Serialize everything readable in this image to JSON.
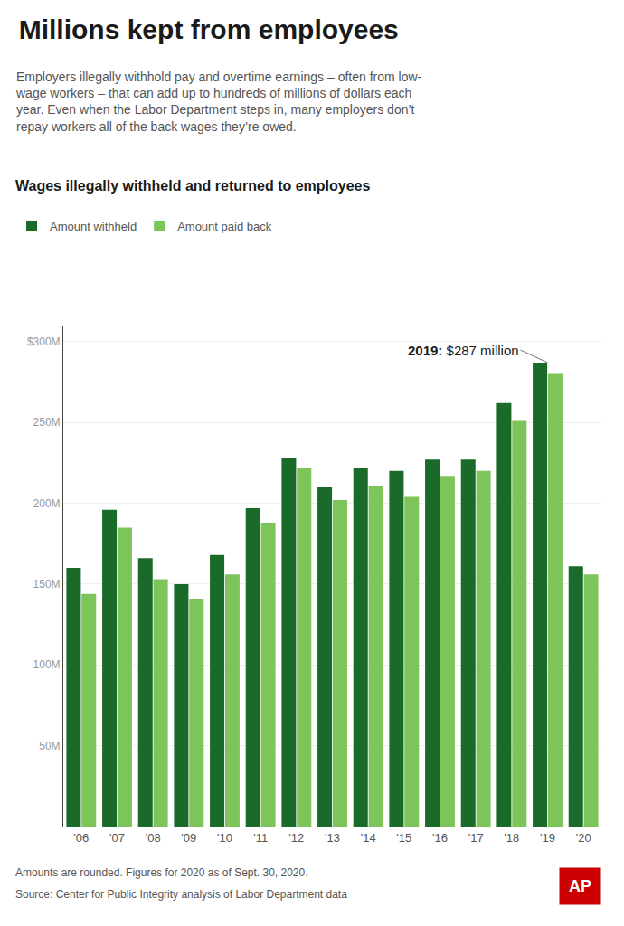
{
  "chart_data": {
    "type": "bar",
    "title": "Millions kept from employees",
    "subtitle": "Employers illegally withhold pay and overtime earnings – often from low-\nwage workers – that can add up to hundreds of millions of dollars each\nyear. Even when the Labor Department steps in, many employers don’t\nrepay workers all of the back wages they’re owed.",
    "chart_title": "Wages illegally withheld and returned to employees",
    "categories": [
      "'06",
      "'07",
      "'08",
      "'09",
      "'10",
      "'11",
      "'12",
      "'13",
      "'14",
      "'15",
      "'16",
      "'17",
      "'18",
      "'19",
      "'20"
    ],
    "series": [
      {
        "name": "Amount withheld",
        "color": "#1a6b2a",
        "values": [
          160,
          196,
          166,
          150,
          168,
          197,
          228,
          210,
          222,
          220,
          227,
          227,
          262,
          287,
          161
        ]
      },
      {
        "name": "Amount paid back",
        "color": "#7dc45a",
        "values": [
          144,
          185,
          153,
          141,
          156,
          188,
          222,
          202,
          211,
          204,
          217,
          220,
          251,
          280,
          156
        ]
      }
    ],
    "ylim": [
      0,
      310
    ],
    "yticks": [
      {
        "value": 50,
        "label": "50M"
      },
      {
        "value": 100,
        "label": "100M"
      },
      {
        "value": 150,
        "label": "150M"
      },
      {
        "value": 200,
        "label": "200M"
      },
      {
        "value": 250,
        "label": "250M"
      },
      {
        "value": 300,
        "label": "$300M"
      }
    ],
    "grid": true,
    "legend": "top",
    "annotations": [
      {
        "bold": "2019:",
        "text": " $287 million",
        "x": "'19",
        "y": 287
      }
    ],
    "footnotes": [
      "Amounts are rounded. Figures for 2020 as of Sept. 30, 2020.",
      "Source: Center for Public Integrity analysis of Labor Department data"
    ],
    "logo": {
      "text": "AP",
      "color": "#cc0000"
    }
  }
}
